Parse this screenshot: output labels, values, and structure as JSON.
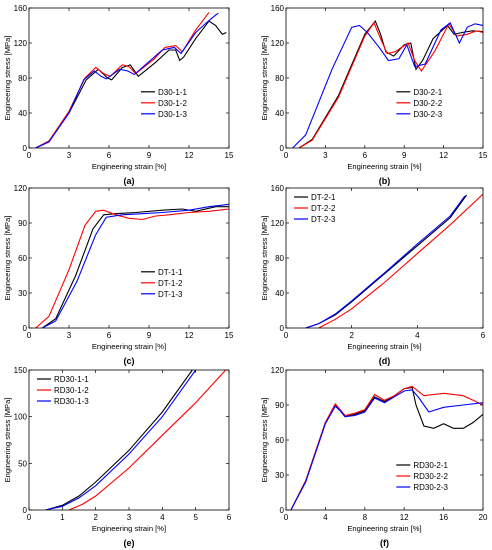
{
  "figure": {
    "colors": {
      "series_1": "#000000",
      "series_2": "#ff0000",
      "series_3": "#0000ff"
    }
  },
  "chart_data": [
    {
      "panel_label": "(a)",
      "type": "line",
      "xlabel": "Engineering strain [%]",
      "ylabel": "Engineering stress [MPa]",
      "xlim": [
        0,
        15
      ],
      "ylim": [
        0,
        160
      ],
      "xticks": [
        0,
        3,
        6,
        9,
        12,
        15
      ],
      "yticks": [
        0,
        40,
        80,
        120,
        160
      ],
      "legend_position": "center-right",
      "series": [
        {
          "name": "D30-1-1",
          "x": [
            0.5,
            1.5,
            3,
            4.3,
            5.2,
            5.9,
            6.2,
            7.0,
            7.6,
            8.2,
            9.5,
            10.5,
            11.0,
            11.3,
            11.6,
            12.5,
            13.5,
            14.0,
            14.5,
            14.8
          ],
          "y": [
            0,
            8,
            40,
            78,
            90,
            80,
            78,
            92,
            95,
            82,
            98,
            112,
            112,
            100,
            104,
            125,
            145,
            140,
            130,
            132
          ]
        },
        {
          "name": "D30-1-2",
          "x": [
            0.5,
            1.5,
            3,
            4.2,
            5.0,
            5.6,
            6.1,
            7.0,
            7.5,
            8.0,
            9.4,
            10.2,
            11.0,
            11.5,
            12.5,
            13.5
          ],
          "y": [
            0,
            8,
            42,
            80,
            92,
            85,
            82,
            95,
            93,
            85,
            102,
            115,
            117,
            110,
            135,
            155
          ]
        },
        {
          "name": "D30-1-3",
          "x": [
            0.5,
            1.5,
            3,
            4.1,
            4.9,
            5.4,
            5.8,
            6.8,
            7.4,
            7.9,
            9.1,
            10.0,
            10.9,
            11.4,
            12.5,
            13.3,
            14.0,
            14.2
          ],
          "y": [
            0,
            7,
            40,
            78,
            88,
            82,
            79,
            90,
            88,
            84,
            100,
            112,
            115,
            108,
            132,
            143,
            152,
            154
          ]
        }
      ]
    },
    {
      "panel_label": "(b)",
      "type": "line",
      "xlabel": "Engineering strain [%]",
      "ylabel": "Engineering stress [MPa]",
      "xlim": [
        0,
        15
      ],
      "ylim": [
        0,
        160
      ],
      "xticks": [
        0,
        3,
        6,
        9,
        12,
        15
      ],
      "yticks": [
        0,
        40,
        80,
        120,
        160
      ],
      "legend_position": "center-right",
      "series": [
        {
          "name": "D30-2-1",
          "x": [
            1,
            2,
            4,
            6.0,
            6.8,
            7.2,
            7.6,
            8.2,
            9.0,
            9.5,
            9.9,
            10.4,
            11.2,
            12.3,
            12.8,
            13.4,
            14.2,
            15
          ],
          "y": [
            0,
            10,
            60,
            130,
            145,
            130,
            110,
            105,
            118,
            120,
            90,
            100,
            125,
            140,
            130,
            132,
            134,
            133
          ]
        },
        {
          "name": "D30-2-2",
          "x": [
            1,
            2,
            4,
            6.0,
            6.7,
            7.2,
            7.7,
            8.3,
            9.3,
            9.8,
            10.3,
            11.3,
            12.4,
            13.0,
            13.8,
            14.5,
            15
          ],
          "y": [
            0,
            9,
            58,
            128,
            143,
            125,
            108,
            110,
            120,
            100,
            88,
            110,
            142,
            128,
            130,
            134,
            132
          ]
        },
        {
          "name": "D30-2-3",
          "x": [
            0.5,
            1.5,
            3.5,
            5.0,
            5.6,
            6.2,
            7.1,
            7.8,
            8.6,
            9.2,
            9.8,
            10.6,
            11.8,
            12.5,
            13.2,
            13.8,
            14.4,
            15
          ],
          "y": [
            0,
            15,
            90,
            138,
            140,
            132,
            115,
            100,
            102,
            118,
            93,
            96,
            135,
            143,
            120,
            138,
            142,
            140
          ]
        }
      ]
    },
    {
      "panel_label": "(c)",
      "type": "line",
      "xlabel": "Engineering strain [%]",
      "ylabel": "Engineering stress [MPa]",
      "xlim": [
        0,
        15
      ],
      "ylim": [
        0,
        120
      ],
      "xticks": [
        0,
        3,
        6,
        9,
        12,
        15
      ],
      "yticks": [
        0,
        30,
        60,
        90,
        120
      ],
      "legend_position": "center-right",
      "series": [
        {
          "name": "DT-1-1",
          "x": [
            1,
            2,
            3.5,
            4.8,
            5.6,
            6.5,
            8,
            10,
            11.5,
            12.5,
            14,
            15
          ],
          "y": [
            0,
            8,
            45,
            85,
            97,
            98,
            99,
            101,
            102,
            100,
            104,
            104
          ]
        },
        {
          "name": "DT-1-2",
          "x": [
            0.5,
            1.5,
            3,
            4.2,
            5.0,
            5.6,
            6.5,
            7.5,
            8.5,
            9.5,
            10.5,
            12,
            13.5,
            15
          ],
          "y": [
            0,
            10,
            50,
            88,
            100,
            101,
            97,
            94,
            93,
            96,
            97,
            99,
            100,
            102
          ]
        },
        {
          "name": "DT-1-3",
          "x": [
            1,
            2,
            3.6,
            5.0,
            5.8,
            7,
            8.5,
            10,
            12,
            13.5,
            15
          ],
          "y": [
            0,
            6,
            40,
            80,
            95,
            97,
            98,
            99,
            101,
            104,
            106
          ]
        }
      ]
    },
    {
      "panel_label": "(d)",
      "type": "line",
      "xlabel": "Engineering strain [%]",
      "ylabel": "Engineering stress [MPa]",
      "xlim": [
        0,
        6
      ],
      "ylim": [
        0,
        160
      ],
      "xticks": [
        0,
        2,
        4,
        6
      ],
      "yticks": [
        0,
        40,
        80,
        120,
        160
      ],
      "legend_position": "top-left",
      "series": [
        {
          "name": "DT-2-1",
          "x": [
            0.6,
            1.0,
            1.5,
            2,
            3,
            4,
            5,
            5.5
          ],
          "y": [
            0,
            5,
            15,
            30,
            62,
            94,
            126,
            152
          ]
        },
        {
          "name": "DT-2-2",
          "x": [
            1.0,
            1.5,
            2,
            3,
            4,
            5,
            6
          ],
          "y": [
            0,
            10,
            22,
            52,
            85,
            118,
            153
          ]
        },
        {
          "name": "DT-2-3",
          "x": [
            0.6,
            1.0,
            1.5,
            2,
            3,
            4,
            5,
            5.45
          ],
          "y": [
            0,
            5,
            16,
            31,
            63,
            96,
            128,
            151
          ]
        }
      ]
    },
    {
      "panel_label": "(e)",
      "type": "line",
      "xlabel": "Engineering strain [%]",
      "ylabel": "Engineering stress [MPa]",
      "xlim": [
        0,
        6
      ],
      "ylim": [
        0,
        150
      ],
      "xticks": [
        0,
        1,
        2,
        3,
        4,
        5,
        6
      ],
      "yticks": [
        0,
        50,
        100,
        150
      ],
      "legend_position": "top-left",
      "series": [
        {
          "name": "RD30-1-1",
          "x": [
            0.5,
            1.0,
            1.5,
            2,
            3,
            4,
            4.9
          ],
          "y": [
            0,
            5,
            15,
            30,
            64,
            105,
            150
          ]
        },
        {
          "name": "RD30-1-2",
          "x": [
            1.2,
            1.6,
            2,
            3,
            4,
            5,
            5.9
          ],
          "y": [
            0,
            6,
            15,
            45,
            80,
            115,
            150
          ]
        },
        {
          "name": "RD30-1-3",
          "x": [
            0.5,
            1.0,
            1.5,
            2,
            3,
            4,
            5.0
          ],
          "y": [
            0,
            4,
            13,
            26,
            60,
            100,
            150
          ]
        }
      ]
    },
    {
      "panel_label": "(f)",
      "type": "line",
      "xlabel": "Engineering strain [%]",
      "ylabel": "Engineering stress [MPa]",
      "xlim": [
        0,
        20
      ],
      "ylim": [
        0,
        120
      ],
      "xticks": [
        0,
        4,
        8,
        12,
        16,
        20
      ],
      "yticks": [
        0,
        30,
        60,
        90,
        120
      ],
      "legend_position": "bottom-right",
      "series": [
        {
          "name": "RD30-2-1",
          "x": [
            0.5,
            2,
            4,
            5,
            5.5,
            6,
            7,
            8,
            9,
            10,
            11,
            12,
            12.8,
            13.2,
            14,
            15,
            16,
            17,
            18,
            19,
            20
          ],
          "y": [
            0,
            25,
            75,
            90,
            85,
            80,
            82,
            85,
            97,
            93,
            98,
            104,
            105,
            90,
            72,
            70,
            74,
            70,
            70,
            75,
            82
          ]
        },
        {
          "name": "RD30-2-2",
          "x": [
            0.5,
            2,
            4,
            5,
            5.5,
            6,
            7,
            8,
            9,
            10,
            11,
            12,
            12.8,
            14,
            16,
            18,
            19,
            20
          ],
          "y": [
            0,
            25,
            75,
            91,
            86,
            81,
            83,
            86,
            99,
            94,
            98,
            104,
            106,
            98,
            100,
            98,
            94,
            90
          ]
        },
        {
          "name": "RD30-2-3",
          "x": [
            0.5,
            2,
            4,
            5,
            5.5,
            6,
            7,
            8,
            9,
            10,
            11,
            12,
            12.8,
            13.5,
            14.5,
            16,
            18,
            20
          ],
          "y": [
            0,
            24,
            74,
            89,
            85,
            80,
            81,
            84,
            96,
            92,
            97,
            102,
            103,
            96,
            84,
            88,
            90,
            92
          ]
        }
      ]
    }
  ]
}
